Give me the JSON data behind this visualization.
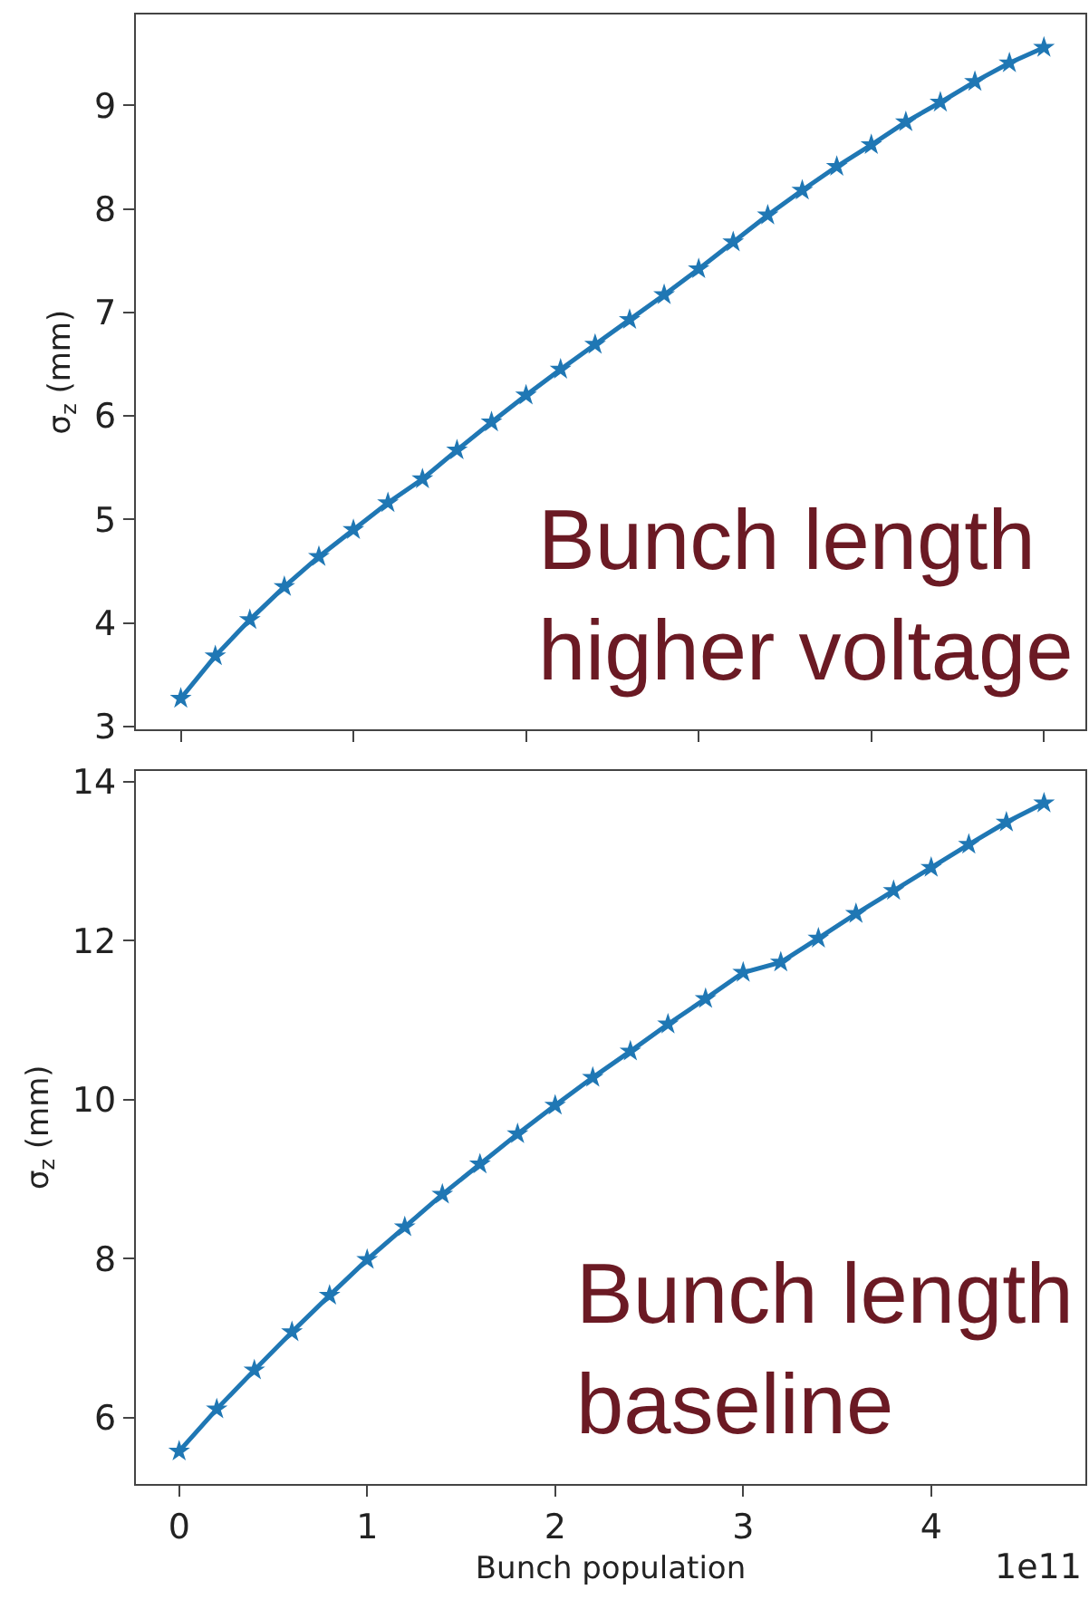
{
  "chart_data": [
    {
      "type": "line",
      "ylabel": "σ$_{z}$ (mm)",
      "categories": [
        null,
        null,
        null,
        null,
        null,
        null,
        null,
        null,
        null,
        null,
        null,
        null,
        null,
        null,
        null,
        null,
        null,
        null,
        null,
        null,
        null,
        null,
        null,
        null,
        null,
        null
      ],
      "series": [
        {
          "color": "#1f77b4",
          "values": [
            3.27,
            3.68,
            4.03,
            4.35,
            4.64,
            4.9,
            5.16,
            5.39,
            5.67,
            5.94,
            6.2,
            6.45,
            6.69,
            6.93,
            7.17,
            7.42,
            7.68,
            7.94,
            8.18,
            8.41,
            8.62,
            8.84,
            9.03,
            9.23,
            9.41,
            9.56
          ]
        }
      ],
      "ylim": [
        2.97,
        9.88
      ],
      "yticks": [
        3,
        4,
        5,
        6,
        7,
        8,
        9
      ],
      "tick_labels": "y",
      "marker": "star",
      "line_style": "solid",
      "annotations": [
        "Bunch length\nhigher voltage"
      ]
    },
    {
      "type": "line",
      "ylabel": "σ$_{z}$ (mm)",
      "xlabel": "Bunch population",
      "x": [
        0,
        0.2,
        0.4,
        0.6,
        0.8,
        1.0,
        1.2,
        1.4,
        1.6,
        1.8,
        2.0,
        2.2,
        2.4,
        2.6,
        2.8,
        3.0,
        3.2,
        3.4,
        3.6,
        3.8,
        4.0,
        4.2,
        4.4,
        4.6
      ],
      "series": [
        {
          "color": "#1f77b4",
          "values": [
            5.58,
            6.11,
            6.6,
            7.08,
            7.54,
            7.99,
            8.4,
            8.81,
            9.19,
            9.57,
            9.93,
            10.28,
            10.61,
            10.95,
            11.27,
            11.6,
            11.73,
            12.03,
            12.34,
            12.63,
            12.92,
            13.21,
            13.49,
            13.73
          ]
        }
      ],
      "xlim": [
        -0.23,
        4.82
      ],
      "xticks": [
        0,
        1,
        2,
        3,
        4
      ],
      "ylim": [
        5.17,
        14.14
      ],
      "yticks": [
        6,
        8,
        10,
        12,
        14
      ],
      "marker": "star",
      "line_style": "solid",
      "annotations": [
        "Bunch length\nbaseline",
        "1e11"
      ]
    }
  ]
}
